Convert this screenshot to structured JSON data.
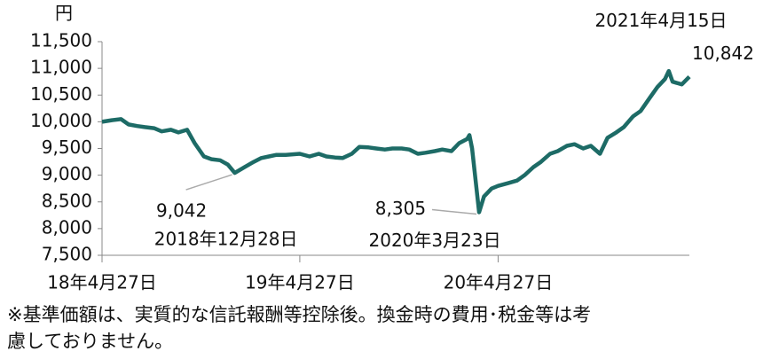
{
  "chart_data": {
    "type": "line",
    "y_unit": "円",
    "x": [
      "2018-04-27",
      "2018-05-15",
      "2018-06-01",
      "2018-06-15",
      "2018-07-01",
      "2018-07-15",
      "2018-08-01",
      "2018-08-15",
      "2018-09-01",
      "2018-09-15",
      "2018-10-01",
      "2018-10-15",
      "2018-11-01",
      "2018-11-15",
      "2018-12-01",
      "2018-12-15",
      "2018-12-28",
      "2019-01-15",
      "2019-02-01",
      "2019-02-15",
      "2019-03-01",
      "2019-03-15",
      "2019-04-01",
      "2019-04-27",
      "2019-05-15",
      "2019-06-01",
      "2019-06-15",
      "2019-07-01",
      "2019-07-15",
      "2019-08-01",
      "2019-08-15",
      "2019-09-01",
      "2019-09-15",
      "2019-10-01",
      "2019-10-15",
      "2019-11-01",
      "2019-11-15",
      "2019-12-01",
      "2019-12-15",
      "2020-01-01",
      "2020-01-15",
      "2020-02-01",
      "2020-02-15",
      "2020-03-01",
      "2020-03-05",
      "2020-03-10",
      "2020-03-23",
      "2020-04-01",
      "2020-04-15",
      "2020-04-27",
      "2020-05-15",
      "2020-06-01",
      "2020-06-15",
      "2020-07-01",
      "2020-07-15",
      "2020-08-01",
      "2020-08-15",
      "2020-09-01",
      "2020-09-15",
      "2020-10-01",
      "2020-10-15",
      "2020-11-01",
      "2020-11-15",
      "2020-12-01",
      "2020-12-15",
      "2021-01-01",
      "2021-01-15",
      "2021-02-01",
      "2021-02-15",
      "2021-03-01",
      "2021-03-08",
      "2021-03-15",
      "2021-04-01",
      "2021-04-15"
    ],
    "series": [
      {
        "color": "#1d6b66",
        "values": [
          10000,
          10030,
          10050,
          9950,
          9920,
          9900,
          9880,
          9820,
          9850,
          9800,
          9850,
          9600,
          9350,
          9300,
          9280,
          9200,
          9042,
          9150,
          9250,
          9320,
          9350,
          9380,
          9380,
          9400,
          9350,
          9400,
          9350,
          9330,
          9320,
          9400,
          9530,
          9520,
          9500,
          9480,
          9500,
          9500,
          9480,
          9400,
          9420,
          9450,
          9480,
          9450,
          9600,
          9680,
          9750,
          9500,
          8305,
          8600,
          8750,
          8800,
          8850,
          8900,
          9000,
          9150,
          9250,
          9400,
          9450,
          9550,
          9580,
          9500,
          9550,
          9400,
          9700,
          9800,
          9900,
          10100,
          10200,
          10450,
          10650,
          10800,
          10950,
          10750,
          10700,
          10842
        ],
        "value_labels": [
          null,
          null,
          null,
          null,
          null,
          null,
          null,
          null,
          null,
          null,
          null,
          null,
          null,
          null,
          null,
          null,
          "9,042",
          null,
          null,
          null,
          null,
          null,
          null,
          null,
          null,
          null,
          null,
          null,
          null,
          null,
          null,
          null,
          null,
          null,
          null,
          null,
          null,
          null,
          null,
          null,
          null,
          null,
          null,
          null,
          null,
          null,
          "8,305",
          null,
          null,
          null,
          null,
          null,
          null,
          null,
          null,
          null,
          null,
          null,
          null,
          null,
          null,
          null,
          null,
          null,
          null,
          null,
          null,
          null,
          null,
          null,
          null,
          null,
          null,
          "10,842"
        ]
      }
    ],
    "annotations": [
      "2018年12月28日",
      "2020年3月23日",
      "2021年4月15日"
    ],
    "xlim": [
      "2018-04-27",
      "2021-04-15"
    ],
    "xticks": [
      {
        "value": "2018-04-27",
        "label": "18年4月27日"
      },
      {
        "value": "2019-04-27",
        "label": "19年4月27日"
      },
      {
        "value": "2020-04-27",
        "label": "20年4月27日"
      }
    ],
    "ylim": [
      7500,
      11500
    ],
    "yticks": [
      {
        "value": 7500,
        "label": "7,500"
      },
      {
        "value": 8000,
        "label": "8,000"
      },
      {
        "value": 8500,
        "label": "8,500"
      },
      {
        "value": 9000,
        "label": "9,000"
      },
      {
        "value": 9500,
        "label": "9,500"
      },
      {
        "value": 10000,
        "label": "10,000"
      },
      {
        "value": 10500,
        "label": "10,500"
      },
      {
        "value": 11000,
        "label": "11,000"
      },
      {
        "value": 11500,
        "label": "11,500"
      }
    ],
    "grid": false,
    "footnote": [
      "※基準価額は、実質的な信託報酬等控除後。換金時の費用･税金等は考",
      "慮しておりません。"
    ]
  }
}
